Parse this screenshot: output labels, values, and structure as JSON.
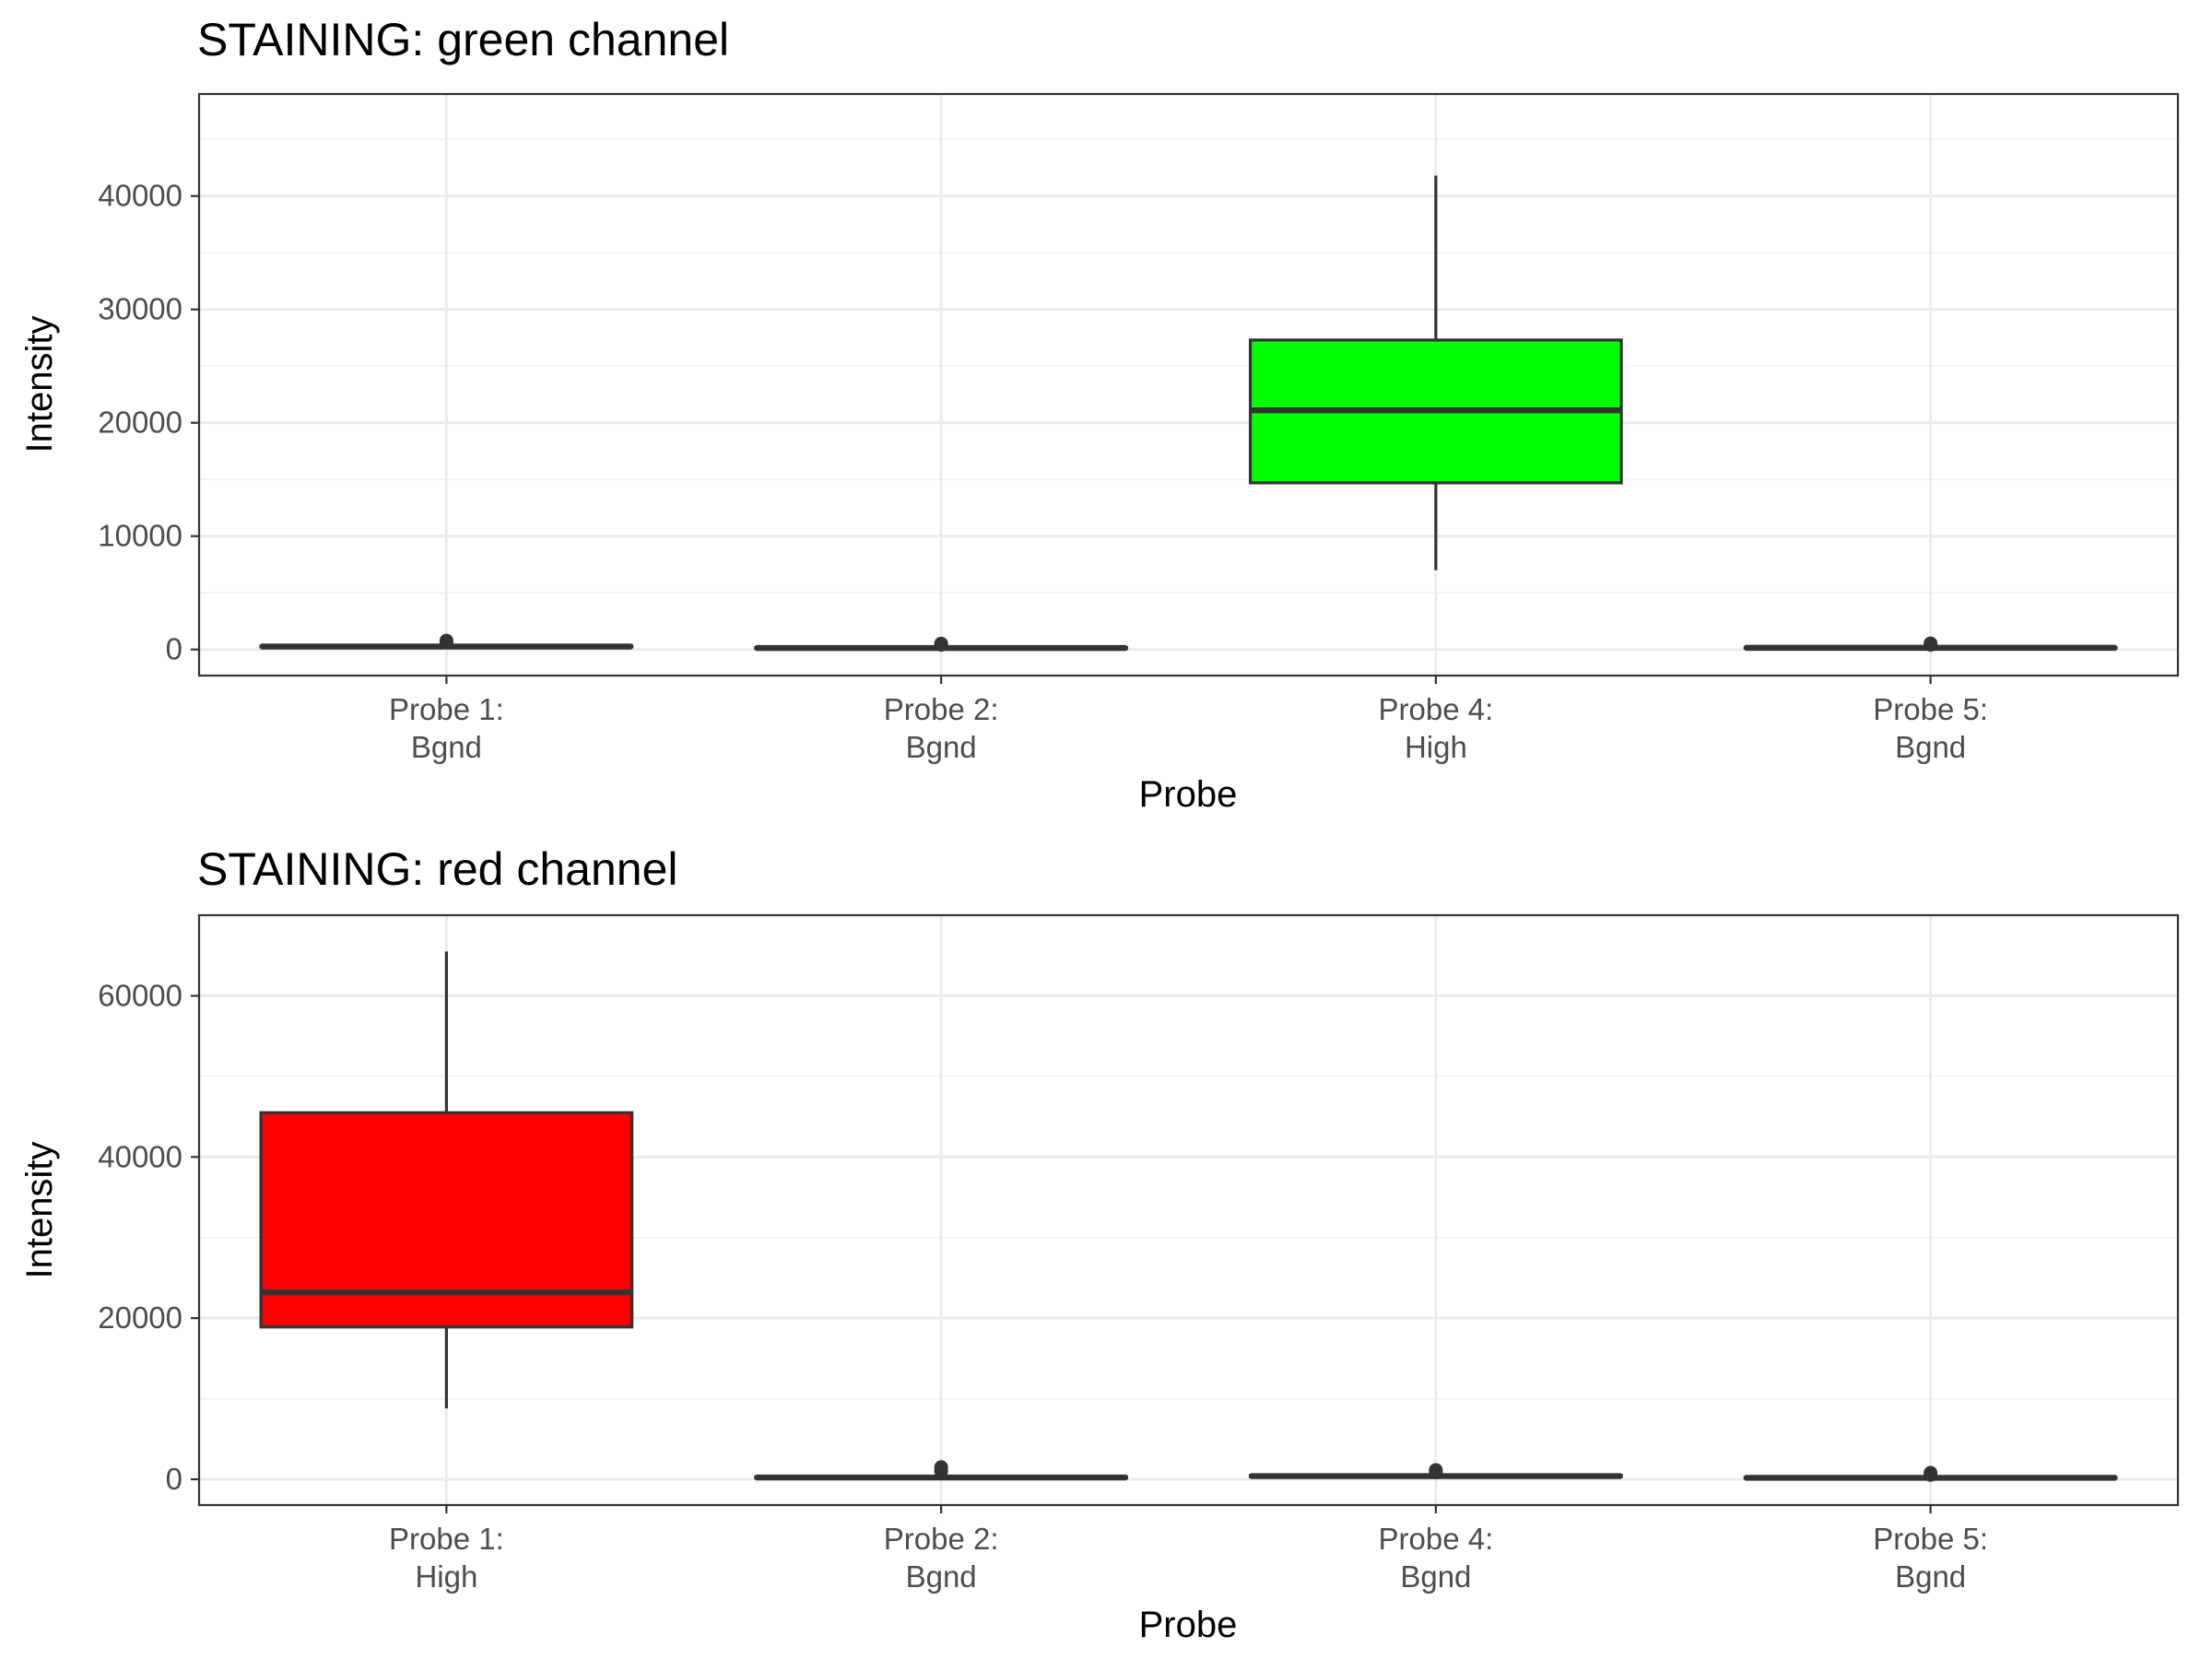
{
  "chart_data": [
    {
      "type": "box",
      "title": "STAINING: green channel",
      "xlabel": "Probe",
      "ylabel": "Intensity",
      "ylim": [
        -2300,
        49000
      ],
      "yticks": [
        0,
        10000,
        20000,
        30000,
        40000
      ],
      "ytick_labels": [
        "0",
        "10000",
        "20000",
        "30000",
        "40000"
      ],
      "grid": true,
      "fill_color": "#00ff00",
      "categories": [
        {
          "line1": "Probe 1:",
          "line2": "Bgnd"
        },
        {
          "line1": "Probe 2:",
          "line2": "Bgnd"
        },
        {
          "line1": "Probe 4:",
          "line2": "High"
        },
        {
          "line1": "Probe 5:",
          "line2": "Bgnd"
        }
      ],
      "boxes": [
        {
          "min": 150,
          "q1": 220,
          "median": 260,
          "q3": 320,
          "max": 480,
          "outliers": [
            620,
            780
          ]
        },
        {
          "min": 60,
          "q1": 100,
          "median": 130,
          "q3": 170,
          "max": 260,
          "outliers": [
            420,
            520
          ]
        },
        {
          "min": 7000,
          "q1": 14700,
          "median": 21100,
          "q3": 27300,
          "max": 41800,
          "outliers": []
        },
        {
          "min": 80,
          "q1": 120,
          "median": 150,
          "q3": 190,
          "max": 280,
          "outliers": [
            420,
            540
          ]
        }
      ]
    },
    {
      "type": "box",
      "title": "STAINING: red channel",
      "xlabel": "Probe",
      "ylabel": "Intensity",
      "ylim": [
        -3200,
        70000
      ],
      "yticks": [
        0,
        20000,
        40000,
        60000
      ],
      "ytick_labels": [
        "0",
        "20000",
        "40000",
        "60000"
      ],
      "grid": true,
      "fill_color": "#ff0000",
      "categories": [
        {
          "line1": "Probe 1:",
          "line2": "High"
        },
        {
          "line1": "Probe 2:",
          "line2": "Bgnd"
        },
        {
          "line1": "Probe 4:",
          "line2": "Bgnd"
        },
        {
          "line1": "Probe 5:",
          "line2": "Bgnd"
        }
      ],
      "boxes": [
        {
          "min": 8800,
          "q1": 18900,
          "median": 23200,
          "q3": 45500,
          "max": 65500,
          "outliers": []
        },
        {
          "min": 100,
          "q1": 160,
          "median": 220,
          "q3": 290,
          "max": 420,
          "outliers": [
            1000,
            1500
          ]
        },
        {
          "min": 250,
          "q1": 330,
          "median": 400,
          "q3": 480,
          "max": 650,
          "outliers": [
            850,
            1150
          ]
        },
        {
          "min": 90,
          "q1": 140,
          "median": 180,
          "q3": 240,
          "max": 350,
          "outliers": [
            550,
            800
          ]
        }
      ]
    }
  ]
}
